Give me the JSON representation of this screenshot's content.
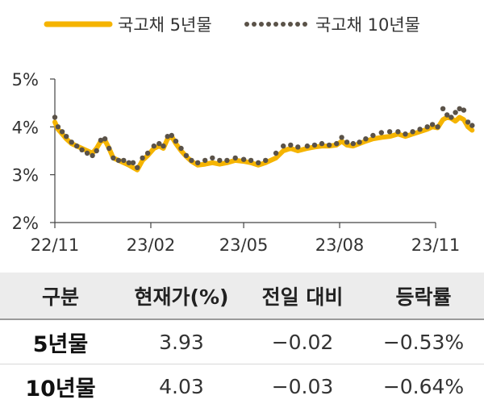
{
  "chart_data": {
    "type": "line",
    "title": "",
    "xlabel": "",
    "ylabel": "",
    "ylim": [
      2,
      5
    ],
    "y_ticks": [
      "2%",
      "3%",
      "4%",
      "5%"
    ],
    "y_tick_values": [
      2,
      3,
      4,
      5
    ],
    "x_ticks": [
      "22/11",
      "23/02",
      "23/05",
      "23/08",
      "23/11"
    ],
    "x_tick_values": [
      "2022-11-01",
      "2023-02-01",
      "2023-05-01",
      "2023-08-01",
      "2023-11-01"
    ],
    "legend_position": "top",
    "grid": false,
    "series": [
      {
        "name": "국고채 5년물",
        "style": "solid",
        "color": "#F5B400",
        "points": [
          [
            "2022-11-01",
            4.1
          ],
          [
            "2022-11-04",
            3.95
          ],
          [
            "2022-11-08",
            3.85
          ],
          [
            "2022-11-12",
            3.75
          ],
          [
            "2022-11-17",
            3.65
          ],
          [
            "2022-11-22",
            3.6
          ],
          [
            "2022-11-27",
            3.55
          ],
          [
            "2022-12-02",
            3.5
          ],
          [
            "2022-12-07",
            3.45
          ],
          [
            "2022-12-11",
            3.55
          ],
          [
            "2022-12-15",
            3.7
          ],
          [
            "2022-12-19",
            3.72
          ],
          [
            "2022-12-23",
            3.55
          ],
          [
            "2022-12-27",
            3.35
          ],
          [
            "2023-01-01",
            3.3
          ],
          [
            "2023-01-06",
            3.25
          ],
          [
            "2023-01-11",
            3.2
          ],
          [
            "2023-01-15",
            3.15
          ],
          [
            "2023-01-19",
            3.1
          ],
          [
            "2023-01-24",
            3.3
          ],
          [
            "2023-01-29",
            3.4
          ],
          [
            "2023-02-04",
            3.55
          ],
          [
            "2023-02-09",
            3.6
          ],
          [
            "2023-02-13",
            3.55
          ],
          [
            "2023-02-17",
            3.75
          ],
          [
            "2023-02-21",
            3.8
          ],
          [
            "2023-02-25",
            3.65
          ],
          [
            "2023-03-02",
            3.5
          ],
          [
            "2023-03-07",
            3.38
          ],
          [
            "2023-03-12",
            3.28
          ],
          [
            "2023-03-18",
            3.2
          ],
          [
            "2023-03-25",
            3.22
          ],
          [
            "2023-04-01",
            3.25
          ],
          [
            "2023-04-08",
            3.22
          ],
          [
            "2023-04-15",
            3.25
          ],
          [
            "2023-04-23",
            3.3
          ],
          [
            "2023-05-01",
            3.28
          ],
          [
            "2023-05-08",
            3.25
          ],
          [
            "2023-05-15",
            3.2
          ],
          [
            "2023-05-22",
            3.25
          ],
          [
            "2023-06-01",
            3.35
          ],
          [
            "2023-06-08",
            3.5
          ],
          [
            "2023-06-15",
            3.55
          ],
          [
            "2023-06-22",
            3.5
          ],
          [
            "2023-07-01",
            3.55
          ],
          [
            "2023-07-08",
            3.58
          ],
          [
            "2023-07-15",
            3.6
          ],
          [
            "2023-07-22",
            3.6
          ],
          [
            "2023-07-29",
            3.62
          ],
          [
            "2023-08-03",
            3.7
          ],
          [
            "2023-08-08",
            3.62
          ],
          [
            "2023-08-14",
            3.6
          ],
          [
            "2023-08-20",
            3.65
          ],
          [
            "2023-08-26",
            3.7
          ],
          [
            "2023-09-02",
            3.75
          ],
          [
            "2023-09-10",
            3.78
          ],
          [
            "2023-09-18",
            3.8
          ],
          [
            "2023-09-26",
            3.85
          ],
          [
            "2023-10-03",
            3.8
          ],
          [
            "2023-10-10",
            3.85
          ],
          [
            "2023-10-17",
            3.9
          ],
          [
            "2023-10-24",
            3.95
          ],
          [
            "2023-10-29",
            4.0
          ],
          [
            "2023-11-03",
            3.98
          ],
          [
            "2023-11-08",
            4.15
          ],
          [
            "2023-11-12",
            4.2
          ],
          [
            "2023-11-16",
            4.18
          ],
          [
            "2023-11-20",
            4.12
          ],
          [
            "2023-11-24",
            4.2
          ],
          [
            "2023-11-28",
            4.15
          ],
          [
            "2023-12-02",
            4.0
          ],
          [
            "2023-12-06",
            3.93
          ]
        ]
      },
      {
        "name": "국고채 10년물",
        "style": "dotted",
        "color": "#5A5248",
        "points": [
          [
            "2022-11-01",
            4.2
          ],
          [
            "2022-11-04",
            4.0
          ],
          [
            "2022-11-08",
            3.9
          ],
          [
            "2022-11-12",
            3.8
          ],
          [
            "2022-11-17",
            3.68
          ],
          [
            "2022-11-22",
            3.6
          ],
          [
            "2022-11-27",
            3.52
          ],
          [
            "2022-12-02",
            3.45
          ],
          [
            "2022-12-07",
            3.4
          ],
          [
            "2022-12-11",
            3.5
          ],
          [
            "2022-12-15",
            3.72
          ],
          [
            "2022-12-19",
            3.75
          ],
          [
            "2022-12-23",
            3.55
          ],
          [
            "2022-12-27",
            3.35
          ],
          [
            "2023-01-01",
            3.3
          ],
          [
            "2023-01-06",
            3.3
          ],
          [
            "2023-01-11",
            3.25
          ],
          [
            "2023-01-15",
            3.25
          ],
          [
            "2023-01-19",
            3.15
          ],
          [
            "2023-01-24",
            3.35
          ],
          [
            "2023-01-29",
            3.45
          ],
          [
            "2023-02-04",
            3.6
          ],
          [
            "2023-02-09",
            3.65
          ],
          [
            "2023-02-13",
            3.6
          ],
          [
            "2023-02-17",
            3.8
          ],
          [
            "2023-02-21",
            3.82
          ],
          [
            "2023-02-25",
            3.7
          ],
          [
            "2023-03-02",
            3.55
          ],
          [
            "2023-03-07",
            3.4
          ],
          [
            "2023-03-12",
            3.3
          ],
          [
            "2023-03-18",
            3.25
          ],
          [
            "2023-03-25",
            3.3
          ],
          [
            "2023-04-01",
            3.35
          ],
          [
            "2023-04-08",
            3.3
          ],
          [
            "2023-04-15",
            3.3
          ],
          [
            "2023-04-23",
            3.35
          ],
          [
            "2023-05-01",
            3.32
          ],
          [
            "2023-05-08",
            3.3
          ],
          [
            "2023-05-15",
            3.25
          ],
          [
            "2023-05-22",
            3.3
          ],
          [
            "2023-06-01",
            3.45
          ],
          [
            "2023-06-08",
            3.6
          ],
          [
            "2023-06-15",
            3.62
          ],
          [
            "2023-06-22",
            3.58
          ],
          [
            "2023-07-01",
            3.6
          ],
          [
            "2023-07-08",
            3.62
          ],
          [
            "2023-07-15",
            3.65
          ],
          [
            "2023-07-22",
            3.62
          ],
          [
            "2023-07-29",
            3.65
          ],
          [
            "2023-08-03",
            3.78
          ],
          [
            "2023-08-08",
            3.68
          ],
          [
            "2023-08-14",
            3.65
          ],
          [
            "2023-08-20",
            3.68
          ],
          [
            "2023-08-26",
            3.75
          ],
          [
            "2023-09-02",
            3.82
          ],
          [
            "2023-09-10",
            3.88
          ],
          [
            "2023-09-18",
            3.9
          ],
          [
            "2023-09-26",
            3.9
          ],
          [
            "2023-10-03",
            3.85
          ],
          [
            "2023-10-10",
            3.9
          ],
          [
            "2023-10-17",
            3.95
          ],
          [
            "2023-10-24",
            4.0
          ],
          [
            "2023-10-29",
            4.05
          ],
          [
            "2023-11-03",
            4.0
          ],
          [
            "2023-11-08",
            4.38
          ],
          [
            "2023-11-12",
            4.25
          ],
          [
            "2023-11-16",
            4.2
          ],
          [
            "2023-11-20",
            4.3
          ],
          [
            "2023-11-24",
            4.38
          ],
          [
            "2023-11-28",
            4.35
          ],
          [
            "2023-12-02",
            4.1
          ],
          [
            "2023-12-06",
            4.03
          ]
        ]
      }
    ]
  },
  "table": {
    "headers": [
      "구분",
      "현재가(%)",
      "전일 대비",
      "등락률"
    ],
    "rows": [
      [
        "5년물",
        "3.93",
        "−0.02",
        "−0.53%"
      ],
      [
        "10년물",
        "4.03",
        "−0.03",
        "−0.64%"
      ]
    ]
  }
}
